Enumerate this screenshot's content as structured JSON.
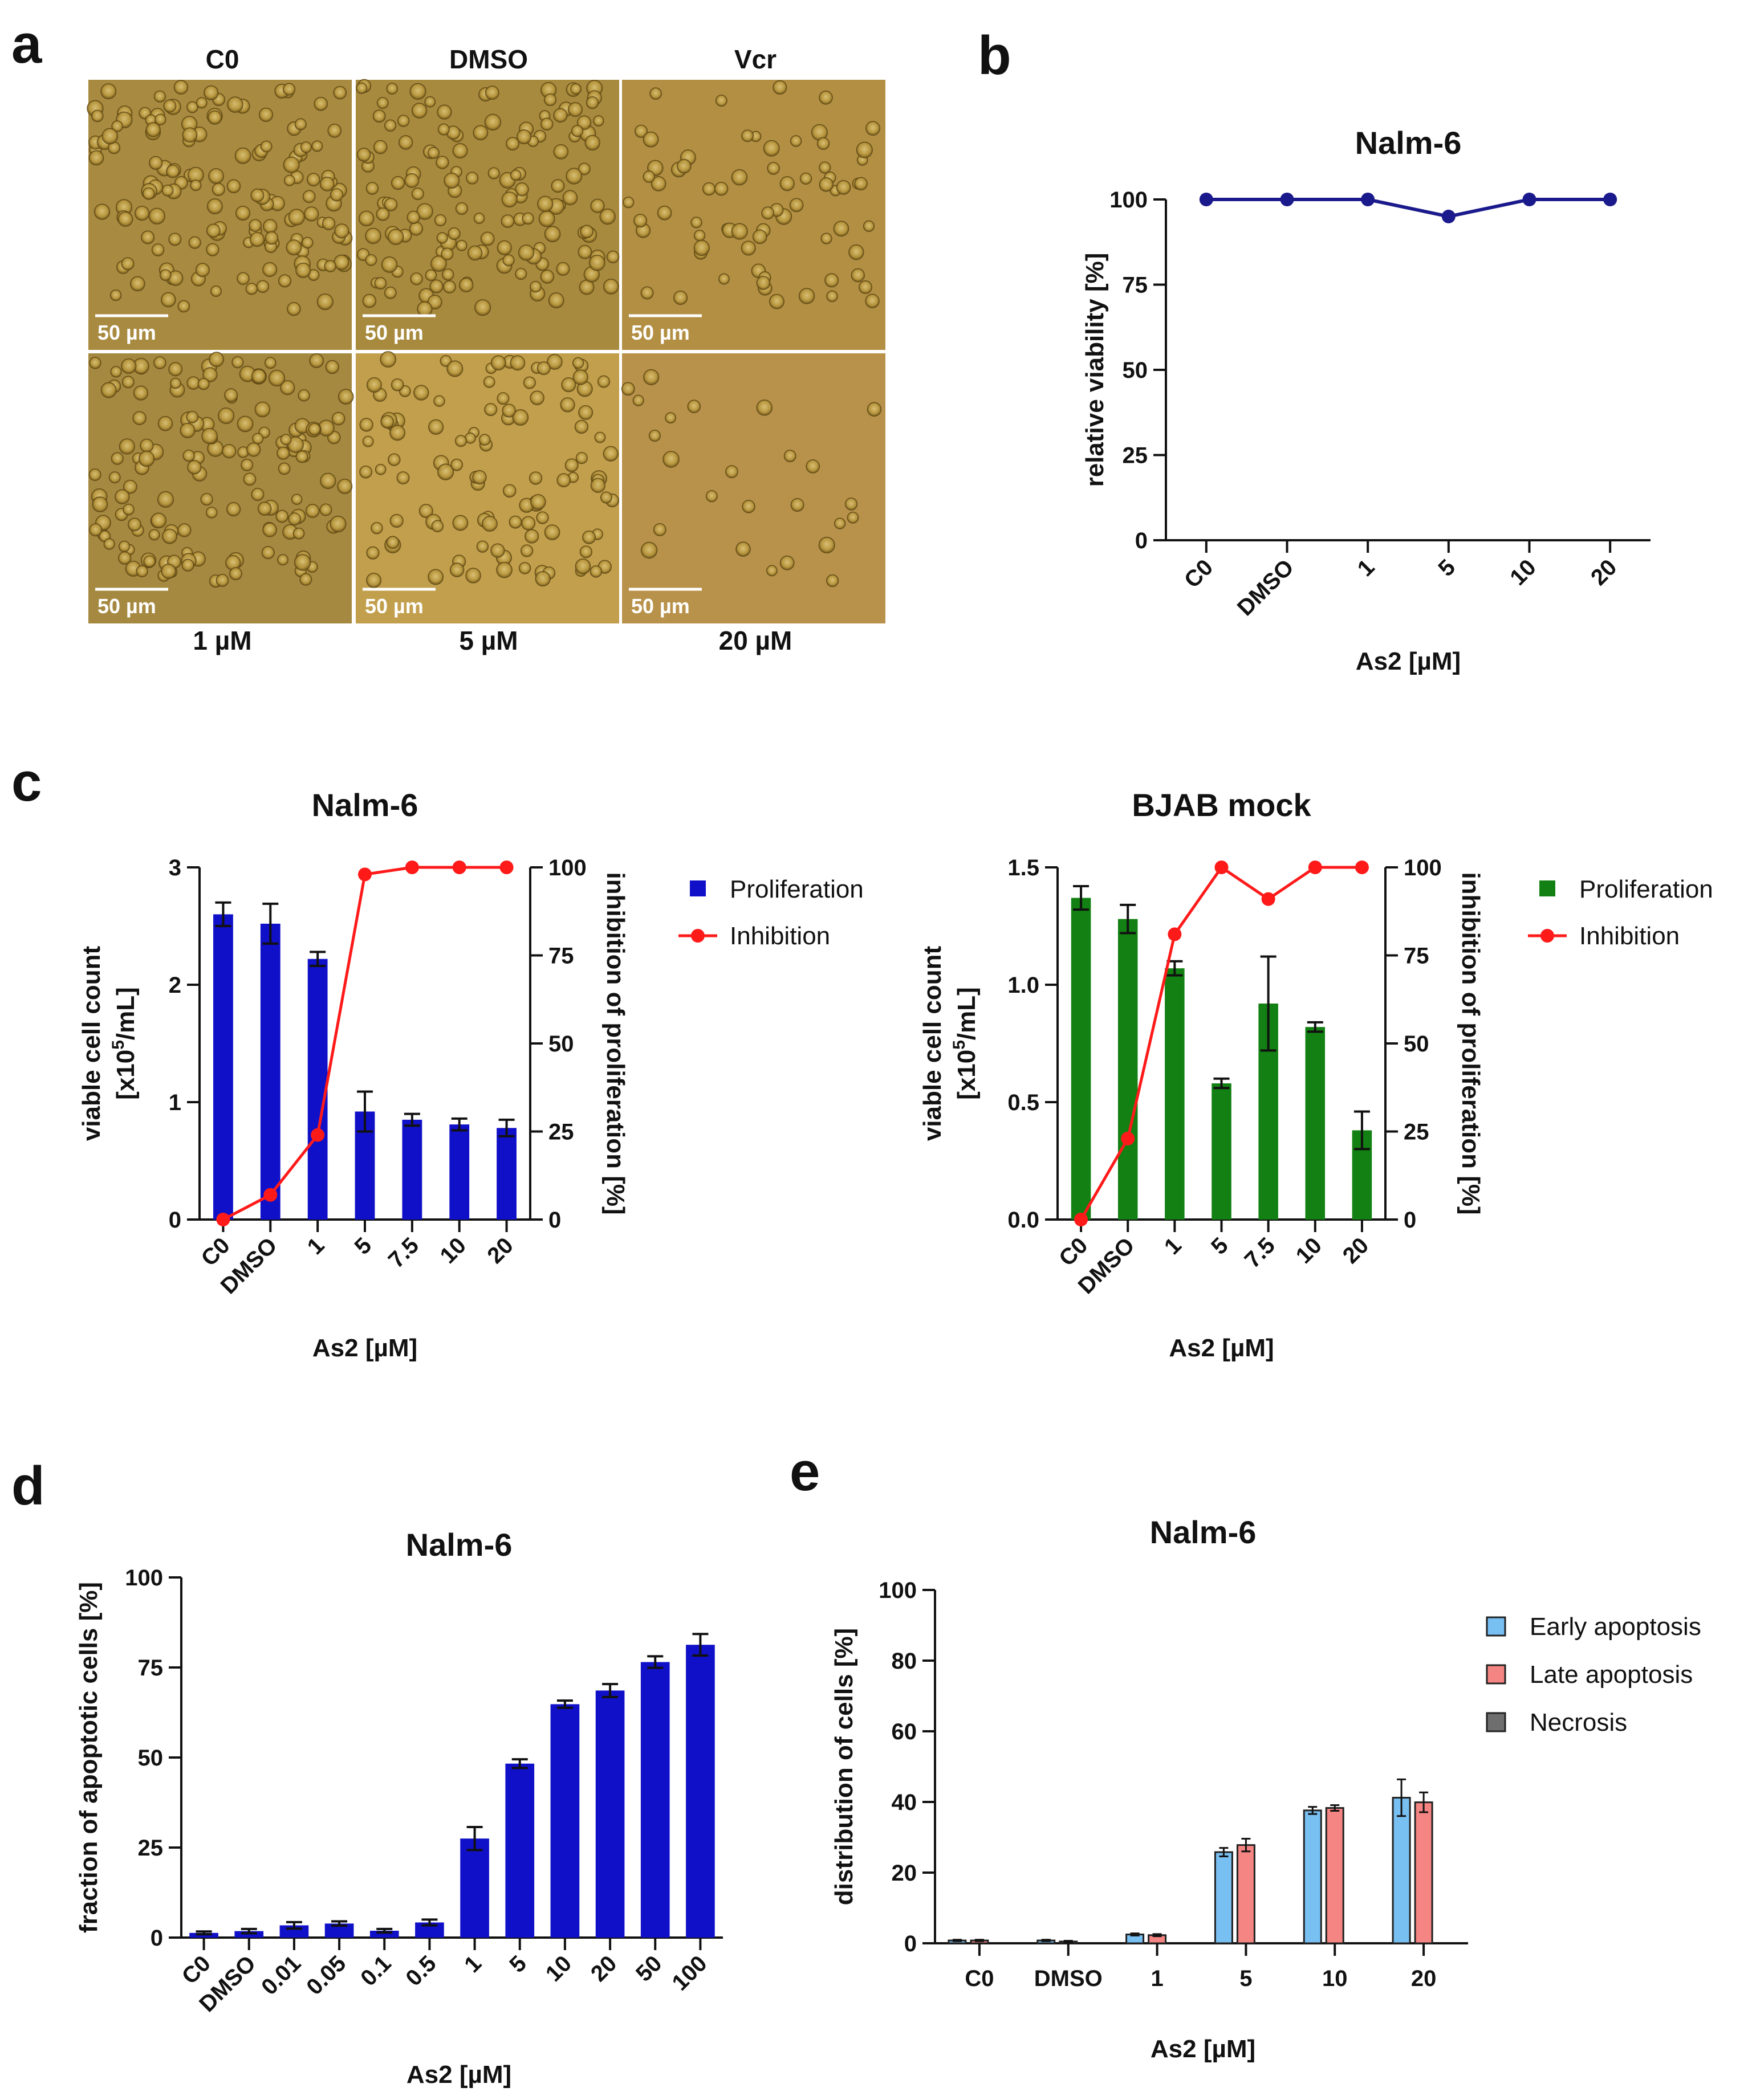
{
  "panel_letters": [
    "a",
    "b",
    "c",
    "d",
    "e"
  ],
  "micrographs": {
    "columns": [
      "C0",
      "DMSO",
      "Vcr"
    ],
    "bottom_labels": [
      "1 µM",
      "5 µM",
      "20 µM"
    ],
    "scale_bar": "50 µm"
  },
  "chart_data": [
    {
      "id": "b",
      "type": "line",
      "title": "Nalm-6",
      "categories": [
        "C0",
        "DMSO",
        "1",
        "5",
        "10",
        "20"
      ],
      "values": [
        100,
        100,
        100,
        95,
        100,
        100
      ],
      "xlabel": "As2 [µM]",
      "ylabel": "relative viability [%]",
      "ylim": [
        0,
        100
      ],
      "yticks": [
        0,
        25,
        50,
        75,
        100
      ],
      "color": "#1a1a8c"
    },
    {
      "id": "c1",
      "type": "bar",
      "title": "Nalm-6",
      "categories": [
        "C0",
        "DMSO",
        "1",
        "5",
        "7.5",
        "10",
        "20"
      ],
      "series": [
        {
          "name": "Proliferation",
          "axis": "left",
          "values": [
            2.6,
            2.52,
            2.22,
            0.92,
            0.85,
            0.81,
            0.78
          ],
          "errors": [
            0.1,
            0.17,
            0.06,
            0.17,
            0.05,
            0.05,
            0.07
          ],
          "color": "#1010c8"
        },
        {
          "name": "Inhibition",
          "axis": "right",
          "values": [
            0,
            7,
            24,
            98,
            100,
            100,
            100
          ],
          "color": "#ff1a1a"
        }
      ],
      "xlabel": "As2 [µM]",
      "ylabel_main": "viable cell count",
      "ylabel_unit_prefix": "[x10",
      "ylabel_unit_exp": "5",
      "ylabel_unit_suffix": "/mL]",
      "ylim": [
        0,
        3
      ],
      "yticks": [
        "0",
        "1",
        "2",
        "3"
      ],
      "y2label": "inhibition of proliferation [%]",
      "y2lim": [
        0,
        100
      ],
      "y2ticks": [
        0,
        25,
        50,
        75,
        100
      ]
    },
    {
      "id": "c2",
      "type": "bar",
      "title": "BJAB mock",
      "categories": [
        "C0",
        "DMSO",
        "1",
        "5",
        "7.5",
        "10",
        "20"
      ],
      "series": [
        {
          "name": "Proliferation",
          "axis": "left",
          "values": [
            1.37,
            1.28,
            1.07,
            0.58,
            0.92,
            0.82,
            0.38
          ],
          "errors": [
            0.05,
            0.06,
            0.03,
            0.02,
            0.2,
            0.02,
            0.08
          ],
          "color": "#128012"
        },
        {
          "name": "Inhibition",
          "axis": "right",
          "values": [
            0,
            23,
            81,
            100,
            91,
            100,
            100
          ],
          "color": "#ff1a1a"
        }
      ],
      "xlabel": "As2 [µM]",
      "ylabel_main": "viable cell count",
      "ylabel_unit_prefix": "[x10",
      "ylabel_unit_exp": "5",
      "ylabel_unit_suffix": "/mL]",
      "ylim": [
        0,
        1.5
      ],
      "yticks": [
        "0.0",
        "0.5",
        "1.0",
        "1.5"
      ],
      "y2label": "inhibition of proliferation [%]",
      "y2lim": [
        0,
        100
      ],
      "y2ticks": [
        0,
        25,
        50,
        75,
        100
      ]
    },
    {
      "id": "d",
      "type": "bar",
      "title": "Nalm-6",
      "categories": [
        "C0",
        "DMSO",
        "0.01",
        "0.05",
        "0.1",
        "0.5",
        "1",
        "5",
        "10",
        "20",
        "50",
        "100"
      ],
      "values": [
        1.3,
        1.8,
        3.4,
        3.9,
        1.9,
        4.2,
        27.5,
        48.3,
        64.8,
        68.6,
        76.5,
        81.3
      ],
      "errors": [
        0.4,
        0.6,
        0.9,
        0.6,
        0.5,
        0.8,
        3.2,
        1.2,
        1.0,
        1.8,
        1.6,
        3.0
      ],
      "xlabel": "As2 [µM]",
      "ylabel": "fraction of apoptotic cells [%]",
      "ylim": [
        0,
        100
      ],
      "yticks": [
        0,
        25,
        50,
        75,
        100
      ],
      "color": "#1010c8"
    },
    {
      "id": "e",
      "type": "bar",
      "title": "Nalm-6",
      "categories": [
        "C0",
        "DMSO",
        "1",
        "5",
        "10",
        "20"
      ],
      "series": [
        {
          "name": "Early apoptosis",
          "values": [
            0.8,
            0.8,
            2.5,
            25.8,
            37.6,
            41.2
          ],
          "errors": [
            0.2,
            0.2,
            0.3,
            1.2,
            1.0,
            5.2
          ],
          "color": "#78bff2"
        },
        {
          "name": "Late apoptosis",
          "values": [
            0.8,
            0.5,
            2.3,
            27.8,
            38.3,
            39.9
          ],
          "errors": [
            0.2,
            0.2,
            0.3,
            1.8,
            0.8,
            2.8
          ],
          "color": "#f58582"
        },
        {
          "name": "Necrosis",
          "values": [
            0,
            0,
            0,
            0,
            0,
            0
          ],
          "errors": [
            0,
            0,
            0,
            0,
            0,
            0
          ],
          "color": "#6e6e6e"
        }
      ],
      "xlabel": "As2 [µM]",
      "ylabel": "distribution of cells [%]",
      "ylim": [
        0,
        100
      ],
      "yticks": [
        0,
        20,
        40,
        60,
        80,
        100
      ]
    }
  ]
}
